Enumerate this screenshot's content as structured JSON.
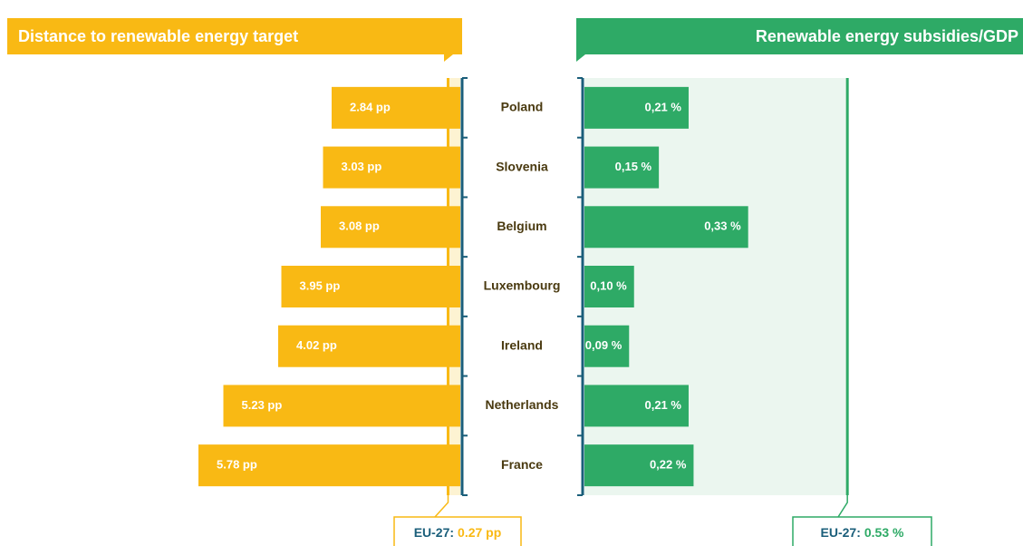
{
  "chart_data": [
    {
      "type": "bar",
      "orientation": "horizontal",
      "direction": "left",
      "title": "Distance to renewable energy target",
      "categories": [
        "Poland",
        "Slovenia",
        "Belgium",
        "Luxembourg",
        "Ireland",
        "Netherlands",
        "France"
      ],
      "values": [
        2.84,
        3.03,
        3.08,
        3.95,
        4.02,
        5.23,
        5.78
      ],
      "value_labels": [
        "2.84 pp",
        "3.03 pp",
        "3.08 pp",
        "3.95 pp",
        "4.02 pp",
        "5.23 pp",
        "5.78 pp"
      ],
      "color": "#f9b914",
      "xlim": [
        0,
        10
      ],
      "reference": {
        "label": "EU-27:",
        "value": 0.27,
        "value_label": "0.27 pp"
      }
    },
    {
      "type": "bar",
      "orientation": "horizontal",
      "direction": "right",
      "title": "Renewable energy subsidies/GDP",
      "values": [
        0.21,
        0.15,
        0.33,
        0.1,
        0.09,
        0.21,
        0.22
      ],
      "value_labels": [
        "0,21 %",
        "0,15 %",
        "0,33 %",
        "0,10 %",
        "0,09 %",
        "0,21 %",
        "0,22 %"
      ],
      "color": "#2eaa66",
      "xlim": [
        0,
        0.8
      ],
      "reference": {
        "label": "EU-27:",
        "value": 0.53,
        "value_label": "0.53 %"
      }
    }
  ]
}
